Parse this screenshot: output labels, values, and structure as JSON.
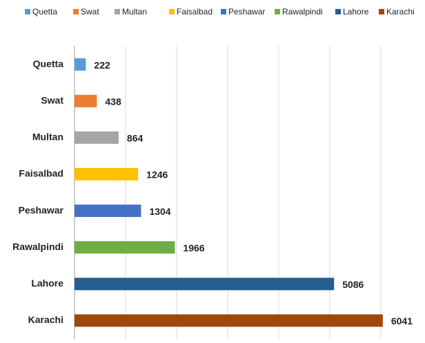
{
  "chart_data": {
    "type": "bar",
    "orientation": "horizontal",
    "categories": [
      "Quetta",
      "Swat",
      "Multan",
      "Faisalbad",
      "Peshawar",
      "Rawalpindi",
      "Lahore",
      "Karachi"
    ],
    "values": [
      222,
      438,
      864,
      1246,
      1304,
      1966,
      5086,
      6041
    ],
    "colors": [
      "#5b9bd5",
      "#ed7d31",
      "#a5a5a5",
      "#ffc000",
      "#4472c4",
      "#70ad47",
      "#255e91",
      "#9e480e"
    ],
    "xlim": [
      0,
      6800
    ],
    "xticks": [
      0,
      1000,
      2000,
      3000,
      4000,
      5000,
      6000
    ],
    "grid": true,
    "legend": "top"
  }
}
